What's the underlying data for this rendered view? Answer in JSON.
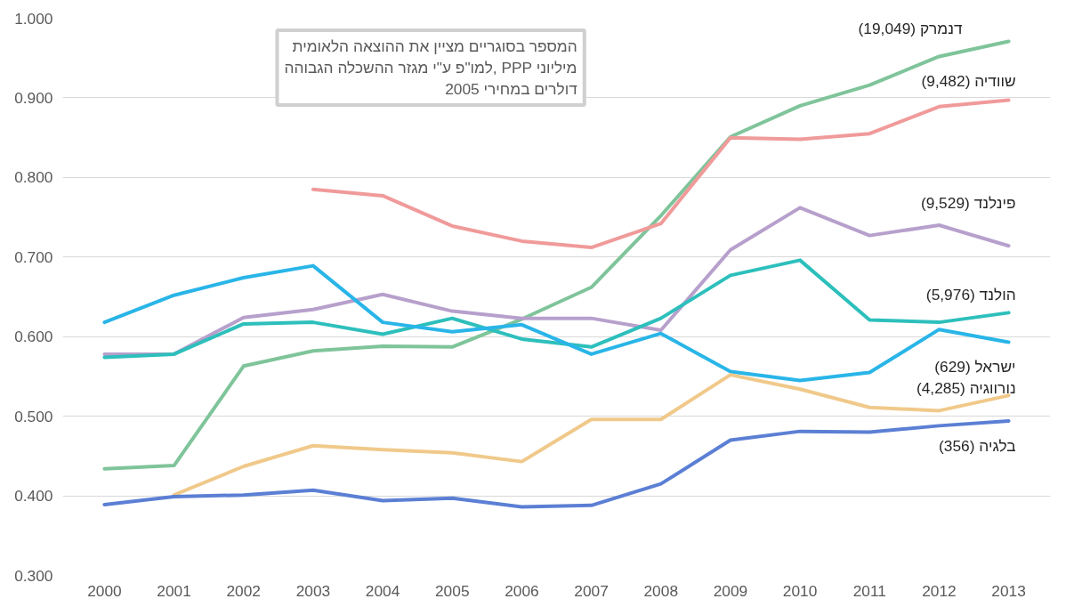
{
  "chart_data": {
    "type": "line",
    "x": [
      2000,
      2001,
      2002,
      2003,
      2004,
      2005,
      2006,
      2007,
      2008,
      2009,
      2010,
      2011,
      2012,
      2013
    ],
    "ylim": [
      0.3,
      1.0
    ],
    "yticks": [
      {
        "value": 0.3,
        "label": "0.300"
      },
      {
        "value": 0.4,
        "label": "0.400"
      },
      {
        "value": 0.5,
        "label": "0.500"
      },
      {
        "value": 0.6,
        "label": "0.600"
      },
      {
        "value": 0.7,
        "label": "0.700"
      },
      {
        "value": 0.8,
        "label": "0.800"
      },
      {
        "value": 0.9,
        "label": "0.900"
      },
      {
        "value": 1.0,
        "label": "1.000"
      }
    ],
    "xlim": [
      1999.4,
      2013.6
    ],
    "xticks": [
      2000,
      2001,
      2002,
      2003,
      2004,
      2005,
      2006,
      2007,
      2008,
      2009,
      2010,
      2011,
      2012,
      2013
    ],
    "grid": "y",
    "marker": "none",
    "line_style": "solid",
    "annotations": [
      "המספר בסוגריים מציין את ההוצאה הלאומית\nלמו\"פ ע\"י מגזר ההשכלה הגבוהה, PPP מיליוני\nדולרים במחירי 2005"
    ],
    "series": [
      {
        "name": "דנמרק (19,049)",
        "color": "#7fc49a",
        "values": [
          0.434,
          0.438,
          0.563,
          0.582,
          0.588,
          0.587,
          0.622,
          0.662,
          0.752,
          0.851,
          0.89,
          0.916,
          0.952,
          0.971
        ]
      },
      {
        "name": "שוודיה (9,482)",
        "color": "#f09a9a",
        "values": [
          null,
          null,
          null,
          0.785,
          0.777,
          0.739,
          0.72,
          0.712,
          0.742,
          0.85,
          0.848,
          0.855,
          0.889,
          0.897
        ]
      },
      {
        "name": "פינלנד (9,529)",
        "color": "#b7a0cc",
        "values": [
          0.578,
          0.578,
          0.624,
          0.634,
          0.653,
          0.632,
          0.623,
          0.623,
          0.608,
          0.709,
          0.762,
          0.727,
          0.74,
          0.714
        ]
      },
      {
        "name": "הולנד (5,976)",
        "color": "#2dbfbc",
        "values": [
          0.574,
          0.578,
          0.616,
          0.618,
          0.603,
          0.623,
          0.597,
          0.587,
          0.623,
          0.677,
          0.696,
          0.621,
          0.618,
          0.63
        ]
      },
      {
        "name": "ישראל (629)",
        "color": "#29b5e8",
        "values": [
          0.618,
          0.652,
          0.674,
          0.689,
          0.618,
          0.606,
          0.615,
          0.578,
          0.604,
          0.556,
          0.545,
          0.555,
          0.609,
          0.593
        ]
      },
      {
        "name": "נורווגיה (4,285)",
        "color": "#f0c98a",
        "values": [
          null,
          0.401,
          0.437,
          0.463,
          0.458,
          0.454,
          0.443,
          0.496,
          0.496,
          0.552,
          0.534,
          0.511,
          0.507,
          0.526
        ]
      },
      {
        "name": "בלגיה (356)",
        "color": "#5b7fd4",
        "values": [
          0.389,
          0.399,
          0.401,
          0.407,
          0.394,
          0.397,
          0.386,
          0.388,
          0.415,
          0.47,
          0.481,
          0.48,
          0.488,
          0.494
        ]
      }
    ]
  }
}
